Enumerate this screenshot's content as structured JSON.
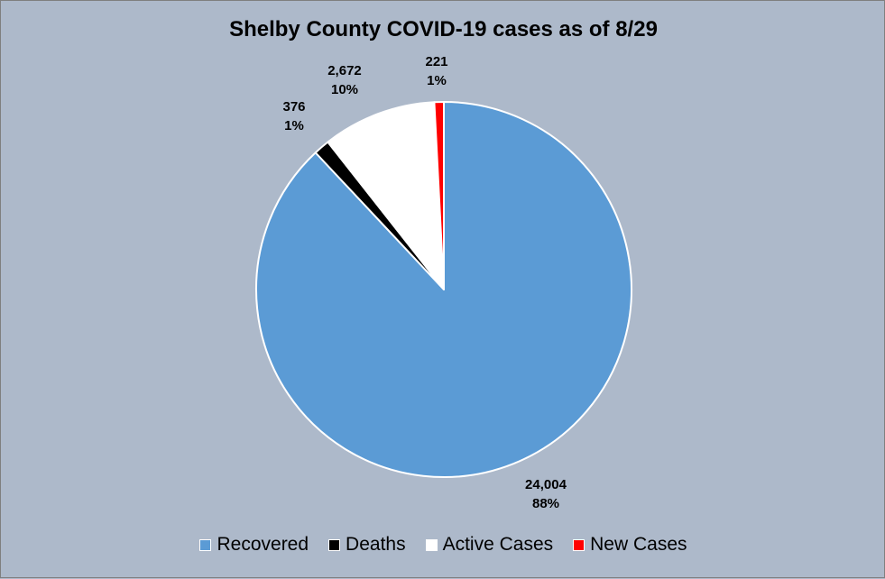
{
  "chart_data": {
    "type": "pie",
    "title": "Shelby County COVID-19 cases as of 8/29",
    "slices": [
      {
        "name": "Recovered",
        "value": 24004,
        "value_label": "24,004",
        "percent_label": "88%",
        "color": "#5b9bd5"
      },
      {
        "name": "Deaths",
        "value": 376,
        "value_label": "376",
        "percent_label": "1%",
        "color": "#000000"
      },
      {
        "name": "Active Cases",
        "value": 2672,
        "value_label": "2,672",
        "percent_label": "10%",
        "color": "#ffffff"
      },
      {
        "name": "New Cases",
        "value": 221,
        "value_label": "221",
        "percent_label": "1%",
        "color": "#ff0000"
      }
    ],
    "legend_position": "bottom"
  }
}
